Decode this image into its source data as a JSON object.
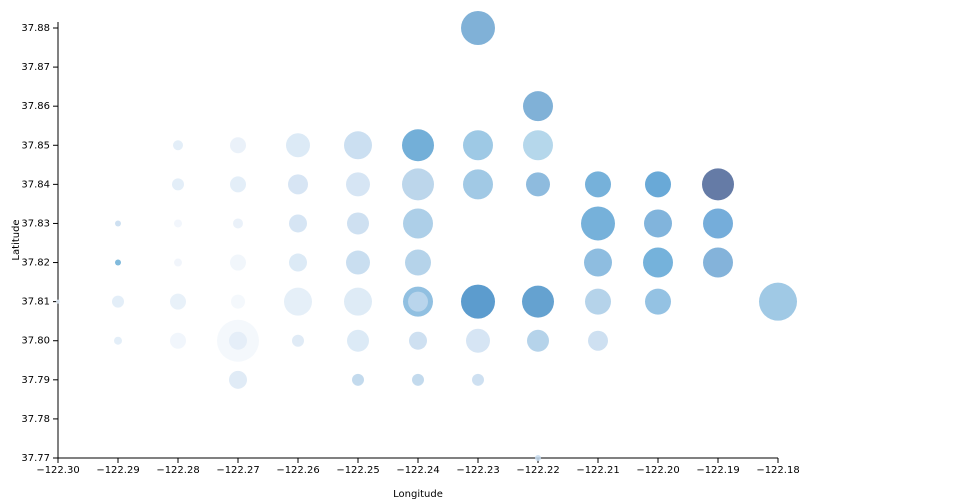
{
  "chart_data": {
    "type": "bubble",
    "x_label": "Longitude",
    "y_label": "Latitude",
    "xlim": [
      -122.3,
      -122.18
    ],
    "xticks": [
      {
        "value": -122.3,
        "label": "−122.30"
      },
      {
        "value": -122.29,
        "label": "−122.29"
      },
      {
        "value": -122.28,
        "label": "−122.28"
      },
      {
        "value": -122.27,
        "label": "−122.27"
      },
      {
        "value": -122.26,
        "label": "−122.26"
      },
      {
        "value": -122.25,
        "label": "−122.25"
      },
      {
        "value": -122.24,
        "label": "−122.24"
      },
      {
        "value": -122.23,
        "label": "−122.23"
      },
      {
        "value": -122.22,
        "label": "−122.22"
      },
      {
        "value": -122.21,
        "label": "−122.21"
      },
      {
        "value": -122.2,
        "label": "−122.20"
      },
      {
        "value": -122.19,
        "label": "−122.19"
      },
      {
        "value": -122.18,
        "label": "−122.18"
      }
    ],
    "ylim": [
      37.77,
      37.88
    ],
    "yticks": [
      37.77,
      37.78,
      37.79,
      {
        "value": 37.8,
        "label": "37.80"
      },
      37.81,
      37.82,
      37.83,
      37.84,
      37.85,
      37.86,
      37.87,
      37.88
    ],
    "x": [
      -122.3,
      -122.29,
      -122.29,
      -122.29,
      -122.29,
      -122.28,
      -122.28,
      -122.28,
      -122.28,
      -122.28,
      -122.28,
      -122.27,
      -122.27,
      -122.27,
      -122.27,
      -122.27,
      -122.27,
      -122.27,
      -122.27,
      -122.26,
      -122.26,
      -122.26,
      -122.26,
      -122.26,
      -122.26,
      -122.25,
      -122.25,
      -122.25,
      -122.25,
      -122.25,
      -122.25,
      -122.25,
      -122.24,
      -122.24,
      -122.24,
      -122.24,
      -122.24,
      -122.24,
      -122.24,
      -122.24,
      -122.23,
      -122.23,
      -122.23,
      -122.23,
      -122.23,
      -122.23,
      -122.22,
      -122.22,
      -122.22,
      -122.22,
      -122.22,
      -122.22,
      -122.21,
      -122.21,
      -122.21,
      -122.21,
      -122.21,
      -122.2,
      -122.2,
      -122.2,
      -122.2,
      -122.19,
      -122.19,
      -122.19,
      -122.18
    ],
    "y": [
      37.81,
      37.83,
      37.82,
      37.81,
      37.8,
      37.85,
      37.84,
      37.83,
      37.82,
      37.81,
      37.8,
      37.85,
      37.84,
      37.83,
      37.82,
      37.81,
      37.8,
      37.8,
      37.79,
      37.85,
      37.84,
      37.83,
      37.82,
      37.81,
      37.8,
      37.85,
      37.84,
      37.83,
      37.82,
      37.81,
      37.8,
      37.79,
      37.85,
      37.84,
      37.83,
      37.82,
      37.81,
      37.81,
      37.8,
      37.79,
      37.88,
      37.85,
      37.84,
      37.81,
      37.8,
      37.79,
      37.86,
      37.85,
      37.84,
      37.81,
      37.8,
      37.77,
      37.84,
      37.83,
      37.82,
      37.81,
      37.8,
      37.84,
      37.83,
      37.82,
      37.81,
      37.84,
      37.83,
      37.82,
      37.81
    ],
    "sizes": [
      2,
      3,
      3,
      6,
      4,
      5,
      6,
      4,
      4,
      8,
      8,
      8,
      8,
      5,
      8,
      7,
      21,
      9,
      9,
      12,
      10,
      9,
      9,
      14,
      6,
      14,
      12,
      11,
      12,
      14,
      11,
      6,
      16,
      16,
      15,
      13,
      15,
      10,
      9,
      6,
      17,
      15,
      15,
      17,
      12,
      6,
      15,
      15,
      12,
      16,
      11,
      3,
      13,
      17,
      14,
      13,
      10,
      13,
      14,
      15,
      13,
      16,
      15,
      15,
      19
    ],
    "colors": [
      "#deebf7",
      "#c6dbef",
      "#6baed6",
      "#deebf7",
      "#deebf7",
      "#deebf7",
      "#deebf7",
      "#f0f5fb",
      "#eef3fa",
      "#e4eef8",
      "#eff5fb",
      "#e6eff8",
      "#deebf7",
      "#e6eff8",
      "#eef4fa",
      "#f2f7fc",
      "#f2f7fc",
      "#e2ecf7",
      "#dbe7f4",
      "#d6e6f4",
      "#d0e1f2",
      "#cfe0f2",
      "#d6e6f4",
      "#e1ecf7",
      "#dbe8f5",
      "#c2d9ee",
      "#cfe0f2",
      "#c6dbef",
      "#c0d8ed",
      "#d8e7f5",
      "#d6e6f4",
      "#b8d3ea",
      "#5aa1d1",
      "#b0cfe7",
      "#9fc7e4",
      "#a8cbe6",
      "#7eb5dc",
      "#c0d8ed",
      "#c6dbef",
      "#b8d3ea",
      "#6aa3d0",
      "#8dbfe0",
      "#90bfe0",
      "#3f8bc6",
      "#cfe0f2",
      "#c6dbef",
      "#6aa3d0",
      "#a8d0e8",
      "#7aafd8",
      "#4a92c8",
      "#a8cbe6",
      "#c6dbef",
      "#5ea3d3",
      "#5ea3d3",
      "#7ab2da",
      "#a8cbe6",
      "#c6dbef",
      "#4f9ad0",
      "#6ba7d6",
      "#5da5d5",
      "#81b7de",
      "#4a6497",
      "#5d9fd3",
      "#6ea6d3",
      "#8fbfe0"
    ]
  }
}
